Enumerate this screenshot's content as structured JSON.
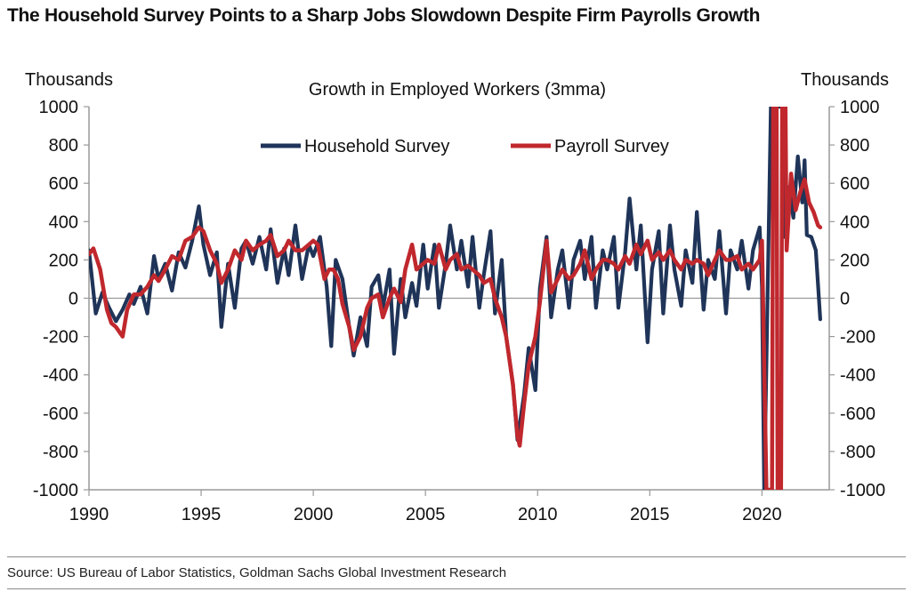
{
  "title": "The Household Survey Points to a Sharp Jobs Slowdown Despite Firm Payrolls Growth",
  "source": "Source: US Bureau of Labor Statistics, Goldman Sachs Global Investment Research",
  "chart_data": {
    "type": "line",
    "title": "Growth in Employed Workers (3mma)",
    "ylabel_left": "Thousands",
    "ylabel_right": "Thousands",
    "xlim": [
      1990,
      2023
    ],
    "ylim": [
      -1000,
      1000
    ],
    "x_ticks": [
      1990,
      1995,
      2000,
      2005,
      2010,
      2015,
      2020
    ],
    "y_ticks": [
      1000,
      800,
      600,
      400,
      200,
      0,
      -200,
      -400,
      -600,
      -800,
      -1000
    ],
    "legend": "top-center",
    "colors": {
      "household": "#1f3458",
      "payroll": "#c0282d"
    },
    "series": [
      {
        "name": "Household Survey",
        "points": [
          [
            1990.0,
            250
          ],
          [
            1990.3,
            -80
          ],
          [
            1990.6,
            30
          ],
          [
            1990.9,
            -50
          ],
          [
            1991.2,
            -120
          ],
          [
            1991.5,
            -60
          ],
          [
            1991.8,
            20
          ],
          [
            1992.0,
            -30
          ],
          [
            1992.3,
            60
          ],
          [
            1992.6,
            -80
          ],
          [
            1992.9,
            220
          ],
          [
            1993.1,
            100
          ],
          [
            1993.4,
            180
          ],
          [
            1993.7,
            40
          ],
          [
            1994.0,
            240
          ],
          [
            1994.3,
            160
          ],
          [
            1994.6,
            300
          ],
          [
            1994.9,
            480
          ],
          [
            1995.1,
            280
          ],
          [
            1995.4,
            120
          ],
          [
            1995.7,
            240
          ],
          [
            1995.9,
            -150
          ],
          [
            1996.2,
            180
          ],
          [
            1996.5,
            -50
          ],
          [
            1996.8,
            260
          ],
          [
            1997.0,
            300
          ],
          [
            1997.3,
            180
          ],
          [
            1997.6,
            320
          ],
          [
            1997.9,
            150
          ],
          [
            1998.1,
            360
          ],
          [
            1998.4,
            80
          ],
          [
            1998.7,
            260
          ],
          [
            1998.9,
            120
          ],
          [
            1999.2,
            380
          ],
          [
            1999.5,
            100
          ],
          [
            1999.8,
            280
          ],
          [
            2000.0,
            220
          ],
          [
            2000.3,
            320
          ],
          [
            2000.6,
            60
          ],
          [
            2000.8,
            -250
          ],
          [
            2001.0,
            200
          ],
          [
            2001.3,
            100
          ],
          [
            2001.6,
            -150
          ],
          [
            2001.8,
            -300
          ],
          [
            2002.1,
            -100
          ],
          [
            2002.4,
            -250
          ],
          [
            2002.6,
            60
          ],
          [
            2002.9,
            120
          ],
          [
            2003.1,
            -50
          ],
          [
            2003.4,
            150
          ],
          [
            2003.6,
            -290
          ],
          [
            2003.9,
            100
          ],
          [
            2004.1,
            -100
          ],
          [
            2004.4,
            80
          ],
          [
            2004.6,
            -40
          ],
          [
            2004.9,
            280
          ],
          [
            2005.1,
            50
          ],
          [
            2005.4,
            280
          ],
          [
            2005.6,
            -50
          ],
          [
            2005.9,
            180
          ],
          [
            2006.1,
            380
          ],
          [
            2006.4,
            150
          ],
          [
            2006.6,
            300
          ],
          [
            2006.9,
            60
          ],
          [
            2007.1,
            320
          ],
          [
            2007.4,
            -50
          ],
          [
            2007.6,
            120
          ],
          [
            2007.9,
            350
          ],
          [
            2008.1,
            -80
          ],
          [
            2008.4,
            200
          ],
          [
            2008.6,
            -200
          ],
          [
            2008.9,
            -450
          ],
          [
            2009.1,
            -740
          ],
          [
            2009.4,
            -500
          ],
          [
            2009.6,
            -260
          ],
          [
            2009.9,
            -480
          ],
          [
            2010.1,
            50
          ],
          [
            2010.4,
            320
          ],
          [
            2010.6,
            -100
          ],
          [
            2010.9,
            150
          ],
          [
            2011.1,
            250
          ],
          [
            2011.4,
            -50
          ],
          [
            2011.6,
            200
          ],
          [
            2011.9,
            300
          ],
          [
            2012.1,
            100
          ],
          [
            2012.4,
            320
          ],
          [
            2012.6,
            -50
          ],
          [
            2012.9,
            250
          ],
          [
            2013.1,
            150
          ],
          [
            2013.4,
            320
          ],
          [
            2013.6,
            -50
          ],
          [
            2013.9,
            240
          ],
          [
            2014.1,
            520
          ],
          [
            2014.4,
            150
          ],
          [
            2014.6,
            380
          ],
          [
            2014.9,
            -230
          ],
          [
            2015.1,
            150
          ],
          [
            2015.4,
            350
          ],
          [
            2015.6,
            -80
          ],
          [
            2015.9,
            380
          ],
          [
            2016.1,
            150
          ],
          [
            2016.4,
            -40
          ],
          [
            2016.6,
            250
          ],
          [
            2016.9,
            80
          ],
          [
            2017.1,
            450
          ],
          [
            2017.4,
            -60
          ],
          [
            2017.6,
            200
          ],
          [
            2017.9,
            100
          ],
          [
            2018.1,
            350
          ],
          [
            2018.4,
            -80
          ],
          [
            2018.6,
            250
          ],
          [
            2018.9,
            150
          ],
          [
            2019.1,
            300
          ],
          [
            2019.4,
            50
          ],
          [
            2019.6,
            250
          ],
          [
            2019.9,
            370
          ],
          [
            2020.0,
            60
          ],
          [
            2020.1,
            -1000
          ],
          [
            2020.4,
            1000
          ],
          [
            2020.6,
            1000
          ],
          [
            2020.9,
            1000
          ],
          [
            2021.0,
            320
          ],
          [
            2021.2,
            580
          ],
          [
            2021.4,
            420
          ],
          [
            2021.6,
            740
          ],
          [
            2021.8,
            500
          ],
          [
            2021.9,
            720
          ],
          [
            2022.0,
            330
          ],
          [
            2022.2,
            320
          ],
          [
            2022.4,
            250
          ],
          [
            2022.6,
            -110
          ]
        ]
      },
      {
        "name": "Payroll Survey",
        "points": [
          [
            1990.0,
            230
          ],
          [
            1990.2,
            260
          ],
          [
            1990.5,
            150
          ],
          [
            1990.8,
            -60
          ],
          [
            1991.0,
            -130
          ],
          [
            1991.2,
            -150
          ],
          [
            1991.5,
            -200
          ],
          [
            1991.7,
            -60
          ],
          [
            1992.0,
            20
          ],
          [
            1992.3,
            20
          ],
          [
            1992.6,
            60
          ],
          [
            1992.9,
            120
          ],
          [
            1993.1,
            90
          ],
          [
            1993.4,
            150
          ],
          [
            1993.7,
            220
          ],
          [
            1994.0,
            200
          ],
          [
            1994.3,
            300
          ],
          [
            1994.6,
            320
          ],
          [
            1994.9,
            370
          ],
          [
            1995.1,
            350
          ],
          [
            1995.4,
            250
          ],
          [
            1995.7,
            180
          ],
          [
            1995.9,
            80
          ],
          [
            1996.2,
            150
          ],
          [
            1996.5,
            250
          ],
          [
            1996.8,
            200
          ],
          [
            1997.0,
            300
          ],
          [
            1997.3,
            250
          ],
          [
            1997.6,
            280
          ],
          [
            1997.9,
            300
          ],
          [
            1998.1,
            330
          ],
          [
            1998.4,
            220
          ],
          [
            1998.7,
            250
          ],
          [
            1998.9,
            300
          ],
          [
            1999.2,
            250
          ],
          [
            1999.5,
            250
          ],
          [
            1999.8,
            280
          ],
          [
            2000.0,
            300
          ],
          [
            2000.2,
            280
          ],
          [
            2000.5,
            100
          ],
          [
            2000.7,
            150
          ],
          [
            2000.9,
            150
          ],
          [
            2001.1,
            100
          ],
          [
            2001.3,
            -30
          ],
          [
            2001.6,
            -150
          ],
          [
            2001.8,
            -270
          ],
          [
            2002.1,
            -200
          ],
          [
            2002.4,
            -50
          ],
          [
            2002.6,
            0
          ],
          [
            2002.9,
            20
          ],
          [
            2003.1,
            -100
          ],
          [
            2003.4,
            0
          ],
          [
            2003.6,
            50
          ],
          [
            2003.9,
            -20
          ],
          [
            2004.1,
            150
          ],
          [
            2004.4,
            280
          ],
          [
            2004.6,
            150
          ],
          [
            2004.9,
            180
          ],
          [
            2005.1,
            200
          ],
          [
            2005.4,
            180
          ],
          [
            2005.6,
            280
          ],
          [
            2005.9,
            150
          ],
          [
            2006.1,
            200
          ],
          [
            2006.4,
            230
          ],
          [
            2006.6,
            150
          ],
          [
            2006.9,
            170
          ],
          [
            2007.1,
            150
          ],
          [
            2007.4,
            120
          ],
          [
            2007.6,
            80
          ],
          [
            2007.9,
            100
          ],
          [
            2008.1,
            0
          ],
          [
            2008.4,
            -100
          ],
          [
            2008.6,
            -200
          ],
          [
            2008.9,
            -450
          ],
          [
            2009.1,
            -720
          ],
          [
            2009.2,
            -770
          ],
          [
            2009.4,
            -550
          ],
          [
            2009.6,
            -350
          ],
          [
            2009.9,
            -200
          ],
          [
            2010.1,
            -20
          ],
          [
            2010.4,
            300
          ],
          [
            2010.6,
            30
          ],
          [
            2010.9,
            100
          ],
          [
            2011.1,
            150
          ],
          [
            2011.4,
            100
          ],
          [
            2011.6,
            120
          ],
          [
            2011.9,
            180
          ],
          [
            2012.1,
            250
          ],
          [
            2012.4,
            100
          ],
          [
            2012.6,
            150
          ],
          [
            2012.9,
            200
          ],
          [
            2013.1,
            200
          ],
          [
            2013.4,
            180
          ],
          [
            2013.6,
            150
          ],
          [
            2013.9,
            220
          ],
          [
            2014.1,
            180
          ],
          [
            2014.4,
            280
          ],
          [
            2014.6,
            230
          ],
          [
            2014.9,
            300
          ],
          [
            2015.1,
            200
          ],
          [
            2015.4,
            240
          ],
          [
            2015.6,
            200
          ],
          [
            2015.9,
            250
          ],
          [
            2016.1,
            200
          ],
          [
            2016.4,
            150
          ],
          [
            2016.6,
            200
          ],
          [
            2016.9,
            180
          ],
          [
            2017.1,
            200
          ],
          [
            2017.4,
            180
          ],
          [
            2017.6,
            120
          ],
          [
            2017.9,
            200
          ],
          [
            2018.1,
            250
          ],
          [
            2018.4,
            200
          ],
          [
            2018.6,
            200
          ],
          [
            2018.9,
            220
          ],
          [
            2019.1,
            150
          ],
          [
            2019.4,
            180
          ],
          [
            2019.6,
            150
          ],
          [
            2019.9,
            200
          ],
          [
            2020.0,
            300
          ],
          [
            2020.2,
            -1000
          ],
          [
            2020.45,
            -1000
          ],
          [
            2020.5,
            1000
          ],
          [
            2020.65,
            1000
          ],
          [
            2020.7,
            -1000
          ],
          [
            2020.85,
            -1000
          ],
          [
            2020.9,
            1000
          ],
          [
            2021.05,
            1000
          ],
          [
            2021.1,
            250
          ],
          [
            2021.3,
            650
          ],
          [
            2021.5,
            460
          ],
          [
            2021.7,
            550
          ],
          [
            2021.9,
            620
          ],
          [
            2022.1,
            500
          ],
          [
            2022.3,
            450
          ],
          [
            2022.5,
            380
          ],
          [
            2022.6,
            370
          ]
        ]
      }
    ]
  }
}
